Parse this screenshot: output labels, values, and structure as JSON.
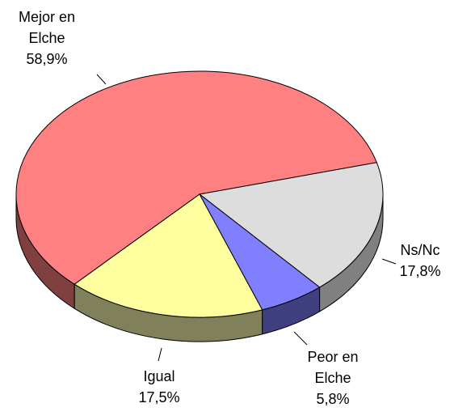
{
  "chart_data": {
    "type": "pie",
    "categories": [
      "Mejor en Elche",
      "Ns/Nc",
      "Peor en Elche",
      "Igual"
    ],
    "values": [
      58.9,
      17.8,
      5.8,
      17.5
    ],
    "value_labels": [
      "58,9%",
      "17,8%",
      "5,8%",
      "17,5%"
    ],
    "colors": [
      "#ff8080",
      "#dddddd",
      "#8080ff",
      "#ffffa0"
    ],
    "side_colors": [
      "#804040",
      "#808080",
      "#404080",
      "#80805a"
    ]
  }
}
